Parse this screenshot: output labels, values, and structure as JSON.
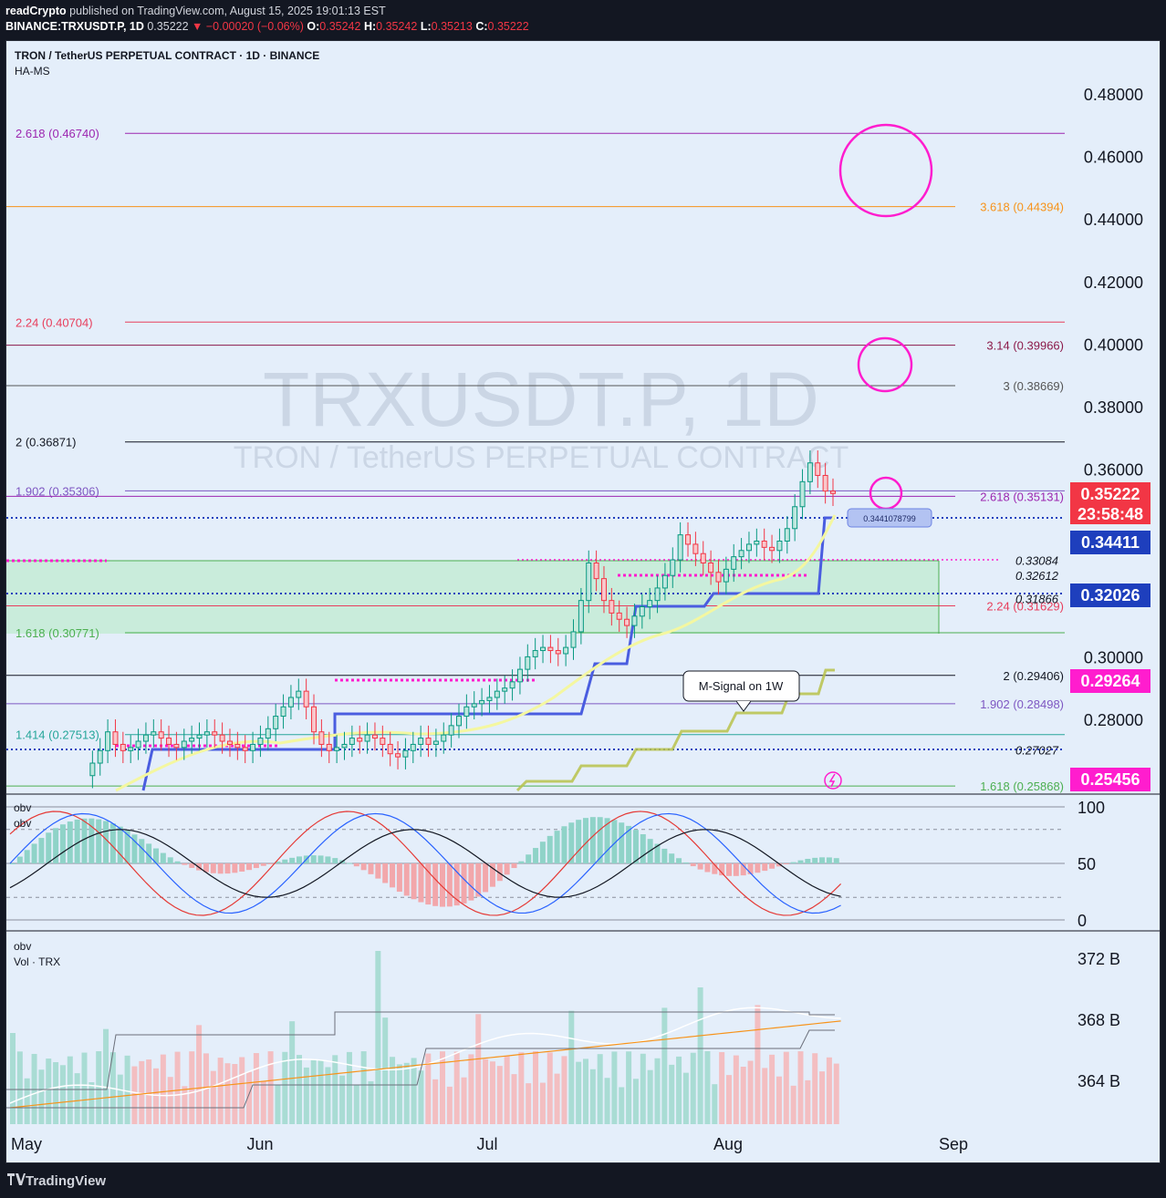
{
  "header": {
    "publisher": "readCrypto",
    "published_text": "published on TradingView.com, August 15, 2025 19:01:13 EST",
    "symbol": "BINANCE:TRXUSDT.P, 1D",
    "last": "0.35222",
    "change": "▼ −0.00020 (−0.06%)",
    "o_label": "O:",
    "o": "0.35242",
    "h_label": "H:",
    "h": "0.35242",
    "l_label": "L:",
    "l": "0.35213",
    "c_label": "C:",
    "c": "0.35222"
  },
  "chart": {
    "instrument": "TRON / TetherUS PERPETUAL CONTRACT · 1D · BINANCE",
    "indicator": "HA-MS",
    "watermark_big": "TRXUSDT.P, 1D",
    "watermark_small": "TRON / TetherUS PERPETUAL CONTRACT",
    "callout": "M-Signal on 1W",
    "box_label": "0.3441078799",
    "obv_label_1": "obv",
    "obv_label_2": "obv",
    "obv_label_3": "obv",
    "vol_label": "Vol · TRX"
  },
  "chart_data": {
    "type": "candlestick",
    "y_axis_ticks": [
      "0.48000",
      "0.46000",
      "0.44000",
      "0.42000",
      "0.40000",
      "0.38000",
      "0.36000",
      "0.30000",
      "0.28000"
    ],
    "x_axis_ticks": [
      "May",
      "Jun",
      "Jul",
      "Aug",
      "Sep"
    ],
    "price_badges": [
      {
        "value": "0.35222",
        "sub": "23:58:48",
        "color": "#f23645"
      },
      {
        "value": "0.34411",
        "color": "#1e3fbd"
      },
      {
        "value": "0.32026",
        "color": "#1e3fbd"
      },
      {
        "value": "0.29264",
        "color": "#ff1dce"
      },
      {
        "value": "0.25456",
        "color": "#ff1dce"
      }
    ],
    "left_levels": [
      {
        "label": "2.618 (0.46740)",
        "price": 0.4674,
        "color": "#9c27b0"
      },
      {
        "label": "2.24 (0.40704)",
        "price": 0.40704,
        "color": "#e83e5c"
      },
      {
        "label": "2 (0.36871)",
        "price": 0.36871,
        "color": "#131722"
      },
      {
        "label": "1.902 (0.35306)",
        "price": 0.35306,
        "color": "#7e57c2"
      },
      {
        "label": "1.618 (0.30771)",
        "price": 0.30771,
        "color": "#4caf50"
      },
      {
        "label": "1.414 (0.27513)",
        "price": 0.27513,
        "color": "#26a69a"
      }
    ],
    "right_levels": [
      {
        "label": "3.618 (0.44394)",
        "price": 0.44394,
        "color": "#f7931a"
      },
      {
        "label": "3.14 (0.39966)",
        "price": 0.39966,
        "color": "#8b1a4a"
      },
      {
        "label": "3 (0.38669)",
        "price": 0.38669,
        "color": "#555555"
      },
      {
        "label": "2.618 (0.35131)",
        "price": 0.35131,
        "color": "#9c27b0"
      },
      {
        "label": "2.24 (0.31629)",
        "price": 0.31629,
        "color": "#e83e5c"
      },
      {
        "label": "2 (0.29406)",
        "price": 0.29406,
        "color": "#131722"
      },
      {
        "label": "1.902 (0.28498)",
        "price": 0.28498,
        "color": "#7e57c2"
      },
      {
        "label": "1.618 (0.25868)",
        "price": 0.25868,
        "color": "#4caf50"
      }
    ],
    "italic_levels": [
      {
        "label": "0.33084",
        "price": 0.33084
      },
      {
        "label": "0.32612",
        "price": 0.32612
      },
      {
        "label": "0.31866",
        "price": 0.31866
      },
      {
        "label": "0.27027",
        "price": 0.27027
      }
    ],
    "price_path_close": [
      0.262,
      0.266,
      0.27,
      0.276,
      0.272,
      0.27,
      0.271,
      0.273,
      0.275,
      0.276,
      0.274,
      0.272,
      0.271,
      0.273,
      0.274,
      0.275,
      0.276,
      0.275,
      0.273,
      0.272,
      0.271,
      0.27,
      0.272,
      0.274,
      0.277,
      0.281,
      0.284,
      0.287,
      0.289,
      0.284,
      0.276,
      0.272,
      0.27,
      0.271,
      0.272,
      0.274,
      0.273,
      0.275,
      0.274,
      0.272,
      0.269,
      0.268,
      0.27,
      0.272,
      0.274,
      0.272,
      0.273,
      0.275,
      0.278,
      0.281,
      0.284,
      0.285,
      0.286,
      0.287,
      0.289,
      0.29,
      0.292,
      0.296,
      0.3,
      0.302,
      0.303,
      0.302,
      0.301,
      0.303,
      0.308,
      0.318,
      0.33,
      0.325,
      0.318,
      0.314,
      0.312,
      0.31,
      0.313,
      0.316,
      0.318,
      0.322,
      0.326,
      0.331,
      0.339,
      0.336,
      0.333,
      0.33,
      0.327,
      0.324,
      0.328,
      0.332,
      0.334,
      0.336,
      0.337,
      0.335,
      0.334,
      0.337,
      0.341,
      0.348,
      0.356,
      0.362,
      0.358,
      0.353,
      0.35222
    ],
    "obv_osc_ticks": [
      "100",
      "50",
      "0"
    ],
    "volume_ticks": [
      "372 B",
      "368 B",
      "364 B"
    ]
  }
}
